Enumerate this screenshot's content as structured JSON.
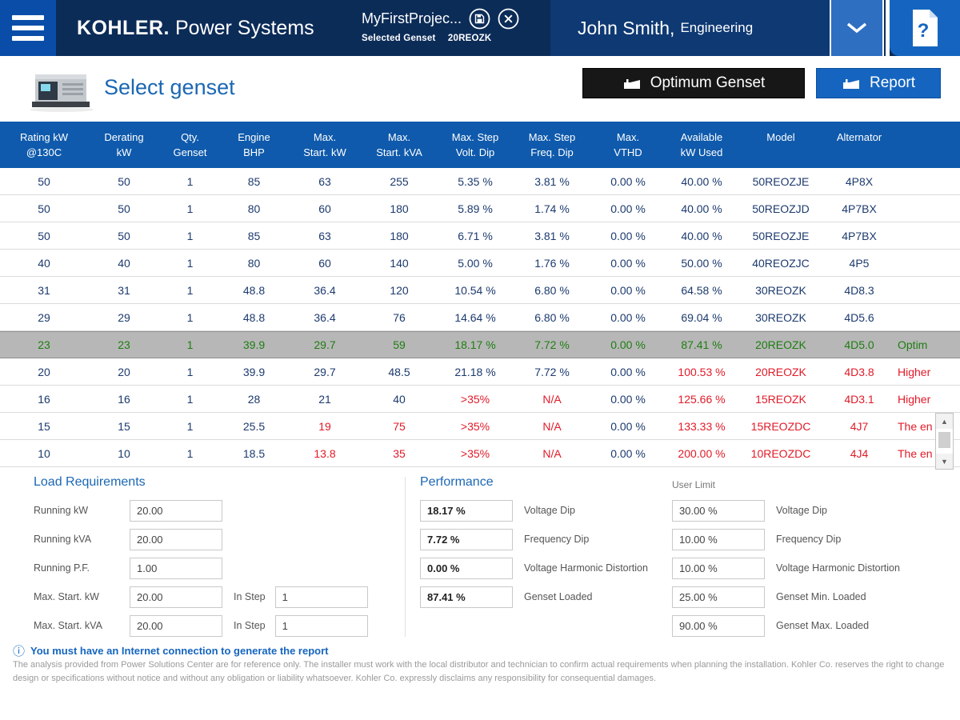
{
  "colors": {
    "navy": "#0c2c58",
    "accent_blue": "#1565c0",
    "table_header_blue": "#0f5aac",
    "selected_green": "#1e7d12",
    "warn_red": "#e11a28",
    "selected_row_gray": "#b7b7b7"
  },
  "header": {
    "brand_bold": "KOHLER.",
    "brand_rest": "Power Systems",
    "project_name": "MyFirstProjec...",
    "selected_label": "Selected Genset",
    "selected_value": "20REOZK",
    "user_name": "John Smith,",
    "user_dept": "Engineering"
  },
  "subheader": {
    "title": "Select genset",
    "optimum_button": "Optimum Genset",
    "report_button": "Report"
  },
  "table": {
    "columns": [
      "Rating kW\n@130C",
      "Derating\nkW",
      "Qty.\nGenset",
      "Engine\nBHP",
      "Max.\nStart. kW",
      "Max.\nStart. kVA",
      "Max. Step\nVolt. Dip",
      "Max. Step\nFreq. Dip",
      "Max.\nVTHD",
      "Available\nkW Used",
      "Model",
      "Alternator",
      ""
    ],
    "rows": [
      {
        "cells": [
          "50",
          "50",
          "1",
          "85",
          "63",
          "255",
          "5.35 %",
          "3.81 %",
          "0.00 %",
          "40.00 %",
          "50REOZJE",
          "4P8X",
          ""
        ],
        "state": "normal",
        "red": []
      },
      {
        "cells": [
          "50",
          "50",
          "1",
          "80",
          "60",
          "180",
          "5.89 %",
          "1.74 %",
          "0.00 %",
          "40.00 %",
          "50REOZJD",
          "4P7BX",
          ""
        ],
        "state": "normal",
        "red": []
      },
      {
        "cells": [
          "50",
          "50",
          "1",
          "85",
          "63",
          "180",
          "6.71 %",
          "3.81 %",
          "0.00 %",
          "40.00 %",
          "50REOZJE",
          "4P7BX",
          ""
        ],
        "state": "normal",
        "red": []
      },
      {
        "cells": [
          "40",
          "40",
          "1",
          "80",
          "60",
          "140",
          "5.00 %",
          "1.76 %",
          "0.00 %",
          "50.00 %",
          "40REOZJC",
          "4P5",
          ""
        ],
        "state": "normal",
        "red": []
      },
      {
        "cells": [
          "31",
          "31",
          "1",
          "48.8",
          "36.4",
          "120",
          "10.54 %",
          "6.80 %",
          "0.00 %",
          "64.58 %",
          "30REOZK",
          "4D8.3",
          ""
        ],
        "state": "normal",
        "red": []
      },
      {
        "cells": [
          "29",
          "29",
          "1",
          "48.8",
          "36.4",
          "76",
          "14.64 %",
          "6.80 %",
          "0.00 %",
          "69.04 %",
          "30REOZK",
          "4D5.6",
          ""
        ],
        "state": "normal",
        "red": []
      },
      {
        "cells": [
          "23",
          "23",
          "1",
          "39.9",
          "29.7",
          "59",
          "18.17 %",
          "7.72 %",
          "0.00 %",
          "87.41 %",
          "20REOZK",
          "4D5.0",
          "Optim"
        ],
        "state": "selected",
        "red": []
      },
      {
        "cells": [
          "20",
          "20",
          "1",
          "39.9",
          "29.7",
          "48.5",
          "21.18 %",
          "7.72 %",
          "0.00 %",
          "100.53 %",
          "20REOZK",
          "4D3.8",
          "Higher"
        ],
        "state": "normal",
        "red": [
          9,
          10,
          11,
          12
        ]
      },
      {
        "cells": [
          "16",
          "16",
          "1",
          "28",
          "21",
          "40",
          ">35%",
          "N/A",
          "0.00 %",
          "125.66 %",
          "15REOZK",
          "4D3.1",
          "Higher"
        ],
        "state": "normal",
        "red": [
          6,
          7,
          9,
          10,
          11,
          12
        ]
      },
      {
        "cells": [
          "15",
          "15",
          "1",
          "25.5",
          "19",
          "75",
          ">35%",
          "N/A",
          "0.00 %",
          "133.33 %",
          "15REOZDC",
          "4J7",
          "The en"
        ],
        "state": "normal",
        "red": [
          4,
          5,
          6,
          7,
          9,
          10,
          11,
          12
        ]
      },
      {
        "cells": [
          "10",
          "10",
          "1",
          "18.5",
          "13.8",
          "35",
          ">35%",
          "N/A",
          "0.00 %",
          "200.00 %",
          "10REOZDC",
          "4J4",
          "The en"
        ],
        "state": "normal",
        "red": [
          4,
          5,
          6,
          7,
          9,
          10,
          11,
          12
        ]
      }
    ]
  },
  "load_requirements": {
    "title": "Load Requirements",
    "fields": [
      {
        "label": "Running kW",
        "value": "20.00"
      },
      {
        "label": "Running kVA",
        "value": "20.00"
      },
      {
        "label": "Running P.F.",
        "value": "1.00"
      },
      {
        "label": "Max. Start. kW",
        "value": "20.00",
        "in_step_label": "In Step",
        "in_step_value": "1"
      },
      {
        "label": "Max. Start. kVA",
        "value": "20.00",
        "in_step_label": "In Step",
        "in_step_value": "1"
      }
    ]
  },
  "performance": {
    "title": "Performance",
    "fields": [
      {
        "value": "18.17 %",
        "label": "Voltage Dip"
      },
      {
        "value": "7.72 %",
        "label": "Frequency Dip"
      },
      {
        "value": "0.00 %",
        "label": "Voltage Harmonic Distortion"
      },
      {
        "value": "87.41 %",
        "label": "Genset Loaded"
      }
    ]
  },
  "user_limit": {
    "title": "User Limit",
    "fields": [
      {
        "value": "30.00 %",
        "label": "Voltage Dip"
      },
      {
        "value": "10.00 %",
        "label": "Frequency Dip"
      },
      {
        "value": "10.00 %",
        "label": "Voltage Harmonic Distortion"
      },
      {
        "value": "25.00 %",
        "label": "Genset Min. Loaded"
      },
      {
        "value": "90.00 %",
        "label": "Genset Max. Loaded"
      }
    ]
  },
  "footer": {
    "info": "You must have an Internet connection to generate the report",
    "disclaimer": "The analysis provided from Power Solutions Center are for reference only. The installer must work with the local distributor and technician to confirm actual requirements when planning the installation. Kohler Co. reserves the right to change design or specifications without notice and without any obligation or liability whatsoever. Kohler Co. expressly disclaims any responsibility for consequential damages."
  }
}
